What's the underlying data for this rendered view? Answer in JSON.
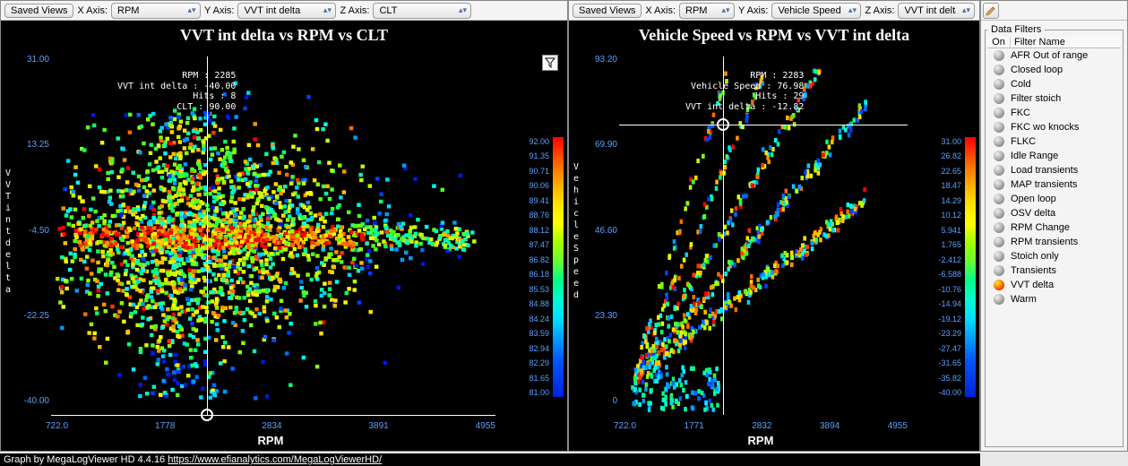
{
  "footer": {
    "prefix": "Graph by MegaLogViewer HD 4.4.16 ",
    "url": "https://www.efianalytics.com/MegaLogViewerHD/"
  },
  "toolbar": {
    "savedViews": "Saved Views",
    "xAxis": "X Axis:",
    "yAxis": "Y Axis:",
    "zAxis": "Z Axis:"
  },
  "panelA": {
    "xSel": "RPM",
    "ySel": "VVT int delta",
    "zSel": "CLT",
    "title": "VVT int delta vs RPM vs CLT",
    "xlabel": "RPM",
    "ylabel": "VVT int delta",
    "info": [
      "RPM : 2285",
      "VVT int delta : -40.00",
      "Hits : 8",
      "CLT : 90.00"
    ],
    "xticks": [
      "722.0",
      "1778",
      "2834",
      "3891",
      "4955"
    ],
    "yticks": [
      "31.00",
      "13.25",
      "-4.50",
      "-22.25",
      "-40.00"
    ],
    "zticks": [
      "92.00",
      "91.35",
      "90.71",
      "90.06",
      "89.41",
      "88.76",
      "88.12",
      "87.47",
      "86.82",
      "86.18",
      "85.53",
      "84.88",
      "84.24",
      "83.59",
      "82.94",
      "82.29",
      "81.65",
      "81.00"
    ],
    "xlim": [
      722,
      4955
    ],
    "ylim": [
      -40,
      31
    ],
    "cursor": {
      "crossVPct": 35.0,
      "crossHPct": 100.0,
      "ringXPct": 35.0,
      "ringYPct": 100.0
    },
    "bg": "#000000",
    "tickColor": "#5aa0ff"
  },
  "panelB": {
    "xSel": "RPM",
    "ySel": "Vehicle Speed",
    "zSel": "VVT int delta",
    "title": "Vehicle Speed vs RPM vs VVT int delta",
    "xlabel": "RPM",
    "ylabel": "Vehicle Speed",
    "info": [
      "RPM : 2283",
      "Vehicle Speed : 76.98",
      "Hits : 29",
      "VVT int delta : -12.82"
    ],
    "xticks": [
      "722.0",
      "1771",
      "2832",
      "3894",
      "4955"
    ],
    "yticks": [
      "93.20",
      "69.90",
      "46.60",
      "23.30",
      "0"
    ],
    "zticks": [
      "31.00",
      "26.82",
      "22.65",
      "18.47",
      "14.29",
      "10.12",
      "5.941",
      "1.765",
      "-2.412",
      "-6.588",
      "-10.76",
      "-14.94",
      "-19.12",
      "-23.29",
      "-27.47",
      "-31.65",
      "-35.82",
      "-40.00"
    ],
    "xlim": [
      722,
      4955
    ],
    "ylim": [
      0,
      93.2
    ],
    "cursor": {
      "crossVPct": 36.0,
      "crossHPct": 19.0,
      "ringXPct": 36.0,
      "ringYPct": 19.0
    },
    "bg": "#000000",
    "tickColor": "#5aa0ff"
  },
  "filtersTitle": "Data Filters",
  "filterHead": {
    "on": "On",
    "name": "Filter Name"
  },
  "filters": [
    {
      "label": "AFR Out of range",
      "active": false
    },
    {
      "label": "Closed loop",
      "active": false
    },
    {
      "label": "Cold",
      "active": false
    },
    {
      "label": "Filter stoich",
      "active": false
    },
    {
      "label": "FKC",
      "active": false
    },
    {
      "label": "FKC wo knocks",
      "active": false
    },
    {
      "label": "FLKC",
      "active": false
    },
    {
      "label": "Idle Range",
      "active": false
    },
    {
      "label": "Load transients",
      "active": false
    },
    {
      "label": "MAP transients",
      "active": false
    },
    {
      "label": "Open loop",
      "active": false
    },
    {
      "label": "OSV delta",
      "active": false
    },
    {
      "label": "RPM Change",
      "active": false
    },
    {
      "label": "RPM transients",
      "active": false
    },
    {
      "label": "Stoich only",
      "active": false
    },
    {
      "label": "Transients",
      "active": false
    },
    {
      "label": "VVT delta",
      "active": true
    },
    {
      "label": "Warm",
      "active": false
    }
  ],
  "gradient": [
    "#ff0000",
    "#ff3800",
    "#ff6b00",
    "#ff9500",
    "#ffbd00",
    "#ffe100",
    "#f5ff00",
    "#c4ff00",
    "#8fff00",
    "#4dff26",
    "#0aff6e",
    "#00ffb3",
    "#00fff2",
    "#00d4ff",
    "#009bff",
    "#006aff",
    "#0040ff",
    "#0018e6"
  ]
}
